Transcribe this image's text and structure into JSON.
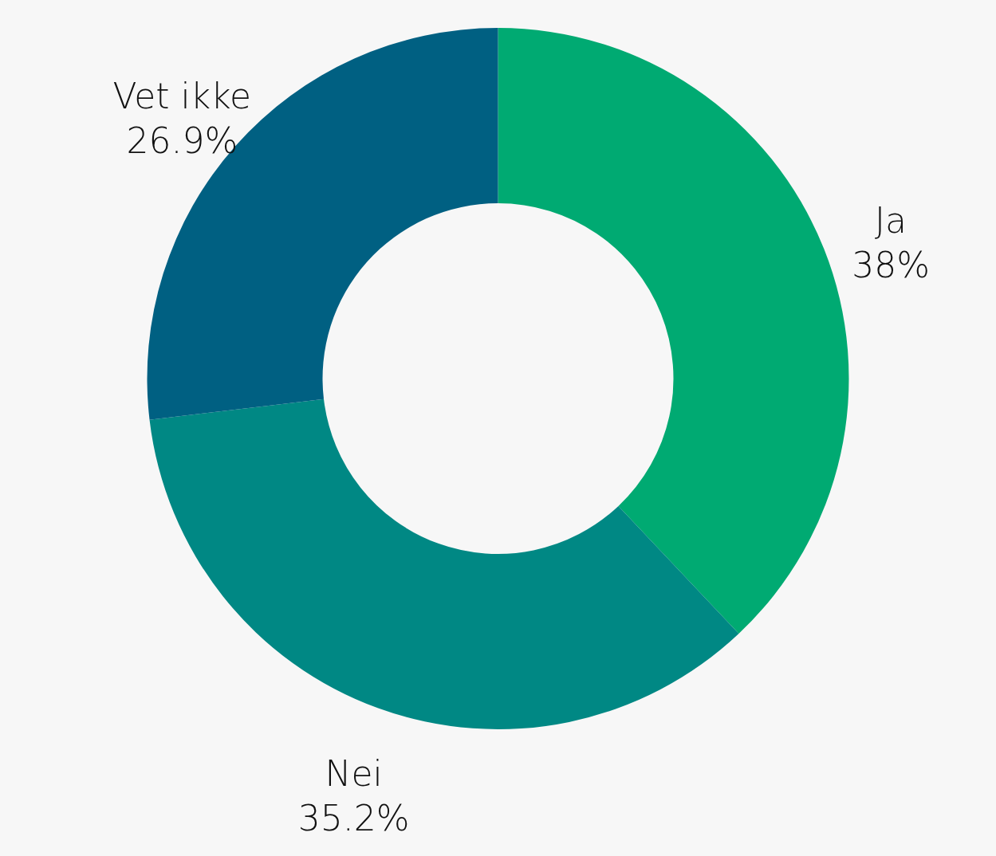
{
  "chart_data": {
    "type": "donut",
    "categories": [
      "Ja",
      "Nei",
      "Vet ikke"
    ],
    "values": [
      38,
      35.2,
      26.9
    ],
    "colors": [
      "#00aa72",
      "#008884",
      "#006082"
    ],
    "value_labels": [
      "38%",
      "35.2%",
      "26.9%"
    ]
  }
}
